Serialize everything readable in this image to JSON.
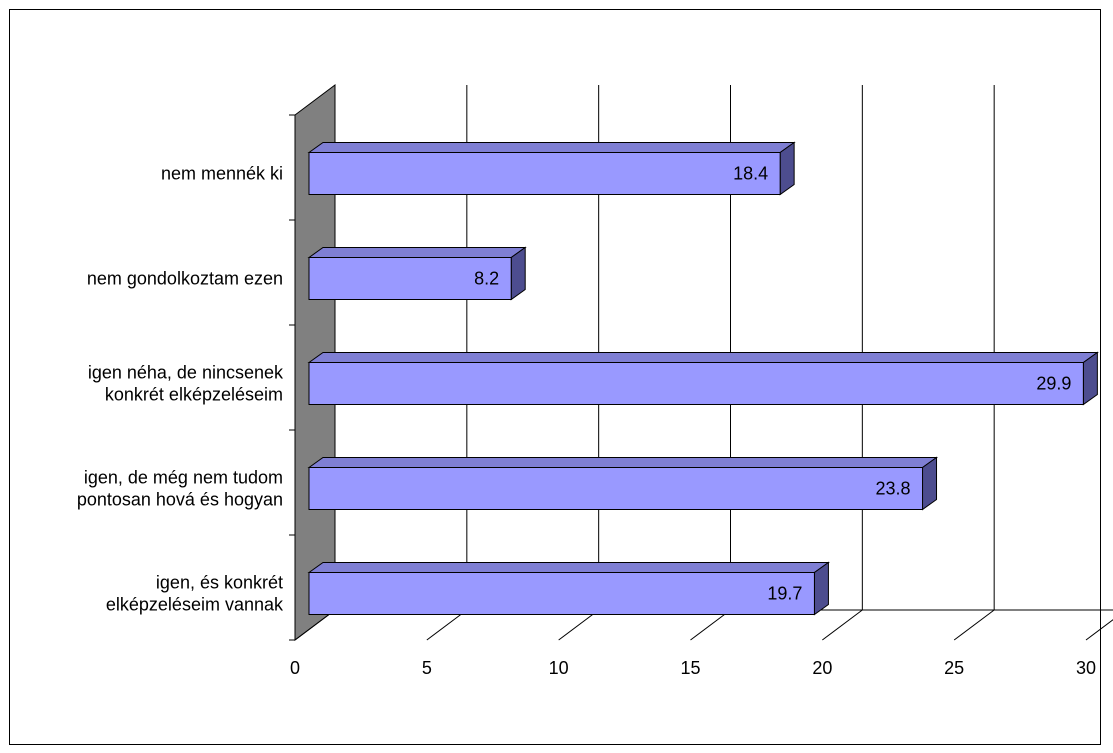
{
  "chart_data": {
    "type": "bar",
    "orientation": "horizontal",
    "style": "3d",
    "categories": [
      [
        "nem mennék ki"
      ],
      [
        "nem gondolkoztam ezen"
      ],
      [
        "igen néha, de nincsenek",
        "konkrét elképzeléseim"
      ],
      [
        "igen, de még nem tudom",
        "pontosan hová és hogyan"
      ],
      [
        "igen, és konkrét",
        "elképzeléseim vannak"
      ]
    ],
    "values": [
      18.4,
      8.2,
      29.9,
      23.8,
      19.7
    ],
    "value_labels": [
      "18.4",
      "8.2",
      "29.9",
      "23.8",
      "19.7"
    ],
    "xlim": [
      0,
      30
    ],
    "x_ticks": [
      "0",
      "5",
      "10",
      "15",
      "20",
      "25",
      "30"
    ],
    "grid": true,
    "legend": "none",
    "colors": {
      "bar_face": "#9999ff",
      "bar_top": "#7f7fd4",
      "bar_side": "#4d4d8f",
      "side_wall": "#808080",
      "grid": "#000000"
    }
  }
}
